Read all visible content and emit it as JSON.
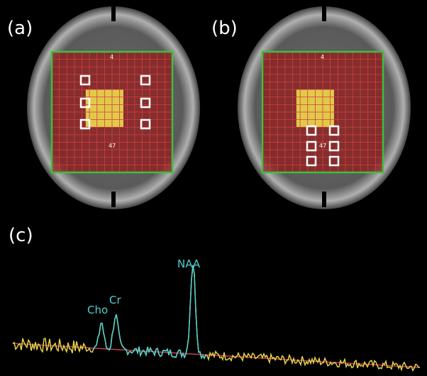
{
  "panels": [
    {
      "label": "(a)"
    },
    {
      "label": "(b)"
    },
    {
      "label": "(c)"
    }
  ],
  "grid_labels": {
    "top": "4",
    "bottom": "47"
  },
  "peaks": [
    "Cho",
    "Cr",
    "NAA"
  ]
}
